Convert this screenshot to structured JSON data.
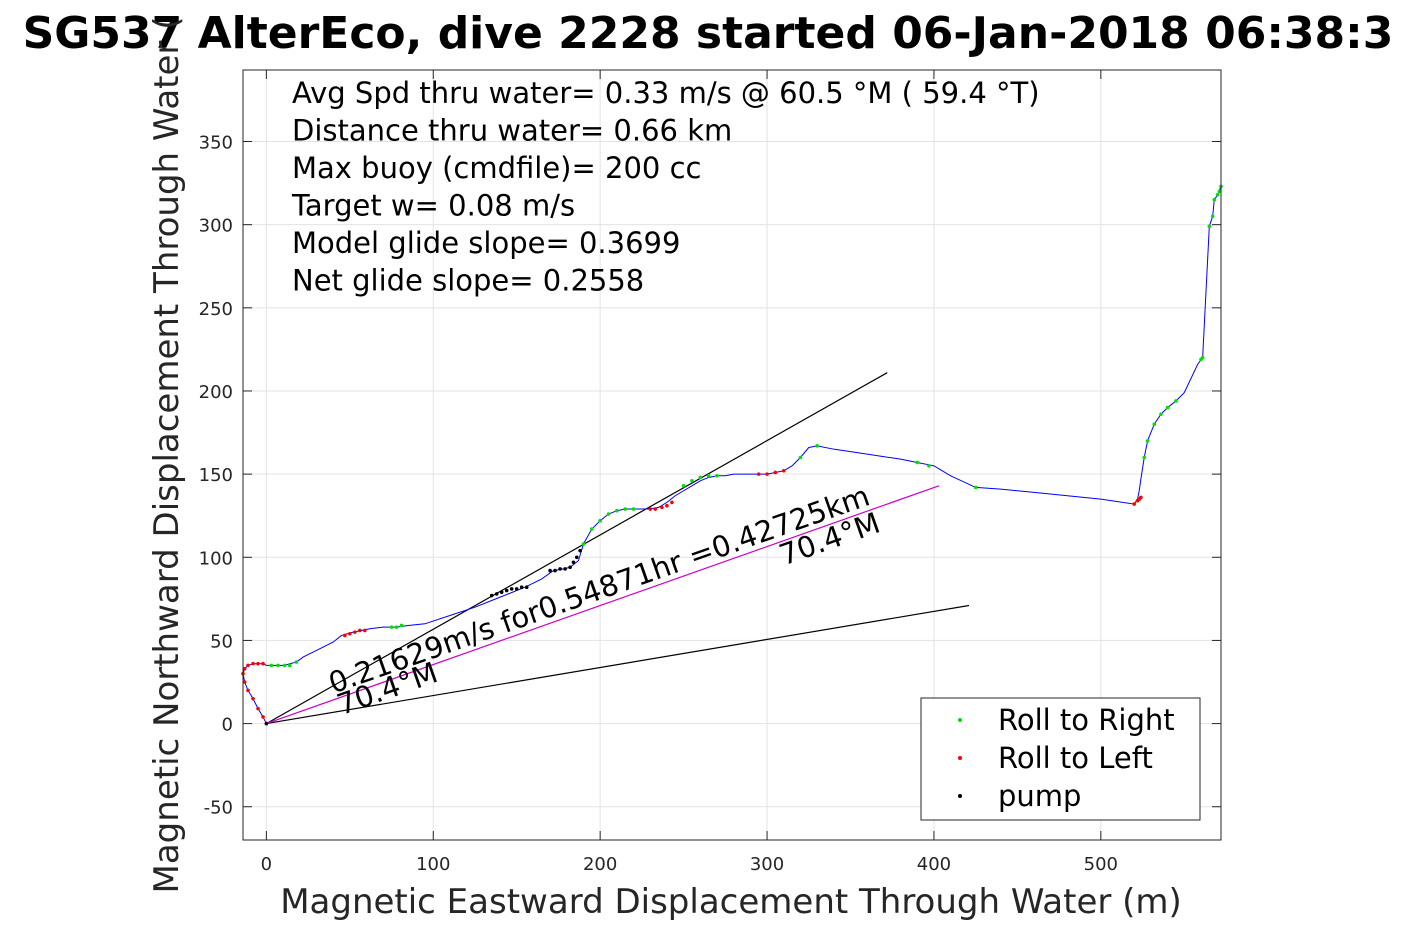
{
  "chart_data": {
    "type": "line",
    "title": "SG537 AlterEco, dive 2228 started 06-Jan-2018 06:38:3",
    "xlabel": "Magnetic Eastward Displacement Through Water (m)",
    "ylabel": "Magnetic Northward Displacement Through Water (",
    "xlim": [
      -14,
      572
    ],
    "ylim": [
      -70,
      393
    ],
    "x_ticks": [
      0,
      100,
      200,
      300,
      400,
      500
    ],
    "y_ticks": [
      -50,
      0,
      50,
      100,
      150,
      200,
      250,
      300,
      350
    ],
    "x_tick_labels": [
      "0",
      "100",
      "200",
      "300",
      "400",
      "500"
    ],
    "y_tick_labels": [
      "-50",
      "0",
      "50",
      "100",
      "150",
      "200",
      "250",
      "300",
      "350"
    ],
    "grid": true,
    "info_lines": [
      "Avg Spd thru water=  0.33 m/s @  60.5 °M ( 59.4 °T)",
      "Distance thru water=  0.66 km",
      "Max buoy (cmdfile)= 200 cc",
      "Target w= 0.08 m/s",
      "Model glide slope= 0.3699",
      "Net glide slope= 0.2558"
    ],
    "annotations": [
      {
        "text": "0.21629m/s for0.54871hr =0.42725km",
        "x": 40,
        "y": 18,
        "angle_deg": 19.4
      },
      {
        "text": "70.4°M",
        "x": 45,
        "y": 5,
        "angle_deg": 19.4
      },
      {
        "text": "70.4°M",
        "x": 310,
        "y": 95,
        "angle_deg": 19.4
      }
    ],
    "reference_lines": [
      {
        "name": "upper-bound",
        "color": "#000000",
        "x": [
          0,
          372
        ],
        "y": [
          0,
          211
        ]
      },
      {
        "name": "lower-bound",
        "color": "#000000",
        "x": [
          0,
          421
        ],
        "y": [
          0,
          71
        ]
      },
      {
        "name": "net-displacement",
        "color": "#cc00cc",
        "x": [
          0,
          403
        ],
        "y": [
          0,
          143
        ]
      }
    ],
    "series": [
      {
        "name": "track",
        "color": "#0000ff",
        "x": [
          0,
          -2,
          -5,
          -8,
          -11,
          -13,
          -14,
          -13,
          -11,
          -8,
          -5,
          -2,
          0,
          3,
          7,
          11,
          14,
          18,
          22,
          30,
          40,
          45,
          52,
          57,
          62,
          70,
          78,
          85,
          95,
          110,
          125,
          135,
          145,
          155,
          165,
          172,
          178,
          182,
          187,
          190,
          195,
          200,
          205,
          210,
          215,
          220,
          225,
          230,
          235,
          240,
          245,
          250,
          255,
          260,
          265,
          270,
          275,
          280,
          290,
          300,
          305,
          310,
          315,
          320,
          325,
          330,
          340,
          360,
          380,
          390,
          400,
          410,
          425,
          440,
          460,
          480,
          500,
          520,
          522,
          523,
          524,
          526,
          528,
          532,
          536,
          540,
          545,
          550,
          558,
          561,
          565,
          567,
          568,
          570,
          572
        ],
        "y": [
          0,
          4,
          9,
          15,
          20,
          25,
          30,
          33,
          35,
          36,
          36,
          36,
          35,
          35,
          35,
          35,
          36,
          37,
          40,
          44,
          49,
          53,
          55,
          56,
          57,
          58,
          58,
          59,
          60,
          65,
          70,
          74,
          78,
          82,
          87,
          92,
          93,
          94,
          98,
          108,
          117,
          122,
          126,
          128,
          129,
          129,
          129,
          129,
          130,
          133,
          137,
          140,
          143,
          146,
          148,
          149,
          149,
          150,
          150,
          150,
          151,
          152,
          155,
          160,
          166,
          167,
          165,
          162,
          159,
          157,
          155,
          149,
          142,
          141,
          139,
          137,
          135,
          132,
          135,
          140,
          147,
          160,
          170,
          180,
          186,
          190,
          194,
          199,
          216,
          220,
          299,
          305,
          315,
          318,
          323
        ]
      }
    ],
    "marker_series": [
      {
        "name": "Roll to Right",
        "color": "#00e000",
        "x": [
          3,
          7,
          11,
          14,
          18,
          75,
          78,
          81,
          190,
          195,
          200,
          205,
          210,
          215,
          220,
          250,
          255,
          260,
          265,
          270,
          320,
          330,
          390,
          397,
          425,
          526,
          528,
          532,
          536,
          540,
          545,
          560,
          561,
          565,
          567,
          568,
          570,
          571,
          572
        ],
        "y": [
          35,
          35,
          35,
          35,
          37,
          58,
          58,
          59,
          108,
          117,
          122,
          126,
          128,
          129,
          129,
          143,
          146,
          148,
          149,
          149,
          160,
          167,
          157,
          155,
          142,
          160,
          170,
          180,
          186,
          190,
          194,
          219,
          220,
          299,
          305,
          315,
          318,
          320,
          323
        ]
      },
      {
        "name": "Roll to Left",
        "color": "#ff0000",
        "x": [
          -2,
          -5,
          -8,
          -11,
          -13,
          -14,
          -13,
          -11,
          -8,
          -5,
          -2,
          47,
          50,
          53,
          56,
          59,
          230,
          233,
          237,
          240,
          243,
          295,
          300,
          305,
          310,
          520,
          522,
          523,
          524
        ],
        "y": [
          4,
          9,
          15,
          20,
          25,
          30,
          33,
          35,
          36,
          36,
          36,
          53,
          54,
          55,
          56,
          56,
          129,
          129,
          130,
          131,
          133,
          150,
          150,
          151,
          152,
          132,
          134,
          135,
          136
        ]
      },
      {
        "name": "pump",
        "color": "#000000",
        "x": [
          0,
          135,
          138,
          141,
          144,
          147,
          150,
          153,
          156,
          170,
          173,
          176,
          179,
          182,
          184,
          186,
          188
        ],
        "y": [
          0,
          77,
          78,
          79,
          80,
          81,
          81,
          82,
          82,
          92,
          92,
          93,
          93,
          94,
          97,
          100,
          104
        ]
      }
    ],
    "legend": {
      "placement": "bottom-right",
      "entries": [
        {
          "label": "Roll to Right",
          "color": "#00e000"
        },
        {
          "label": "Roll to Left",
          "color": "#ff0000"
        },
        {
          "label": "pump",
          "color": "#000000"
        }
      ]
    }
  }
}
